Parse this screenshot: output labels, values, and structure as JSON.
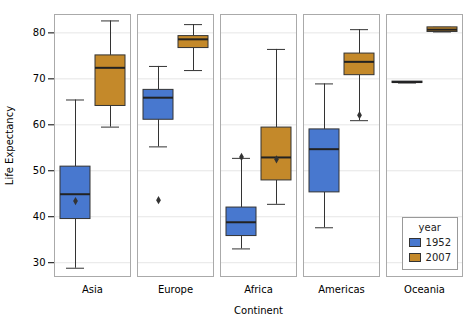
{
  "chart_data": {
    "type": "box",
    "xlabel": "Continent",
    "ylabel": "Life Expectancy",
    "categories": [
      "Asia",
      "Europe",
      "Africa",
      "Americas",
      "Oceania"
    ],
    "series": [
      {
        "name": "1952",
        "color": "#4878CF",
        "values": [
          {
            "whislo": 28.8,
            "q1": 39.5,
            "med": 44.9,
            "q3": 50.9,
            "whishi": 65.4,
            "fliers": [
              43.4
            ]
          },
          {
            "whislo": 55.2,
            "q1": 61.1,
            "med": 65.9,
            "q3": 67.6,
            "whishi": 72.7,
            "fliers": [
              43.6
            ]
          },
          {
            "whislo": 33.0,
            "q1": 35.8,
            "med": 38.8,
            "q3": 42.0,
            "whishi": 52.7,
            "fliers": [
              53.0
            ]
          },
          {
            "whislo": 37.6,
            "q1": 45.3,
            "med": 54.7,
            "q3": 59.0,
            "whishi": 68.9,
            "fliers": []
          },
          {
            "whislo": 69.1,
            "q1": 69.1,
            "med": 69.3,
            "q3": 69.4,
            "whishi": 69.4,
            "fliers": []
          }
        ]
      },
      {
        "name": "2007",
        "color": "#C4892A",
        "values": [
          {
            "whislo": 59.5,
            "q1": 64.1,
            "med": 72.4,
            "q3": 75.1,
            "whishi": 82.6,
            "fliers": []
          },
          {
            "whislo": 71.8,
            "q1": 76.7,
            "med": 78.6,
            "q3": 79.3,
            "whishi": 81.8,
            "fliers": []
          },
          {
            "whislo": 42.7,
            "q1": 47.9,
            "med": 52.9,
            "q3": 59.4,
            "whishi": 76.4,
            "fliers": [
              52.5
            ]
          },
          {
            "whislo": 60.9,
            "q1": 70.8,
            "med": 73.7,
            "q3": 75.5,
            "whishi": 80.7,
            "fliers": [
              62.1
            ]
          },
          {
            "whislo": 80.2,
            "q1": 80.2,
            "med": 80.7,
            "q3": 81.2,
            "whishi": 81.2,
            "fliers": []
          }
        ]
      }
    ],
    "legend_title": "year",
    "legend": "lower right",
    "ylim": [
      27,
      84
    ],
    "yticks": [
      30,
      40,
      50,
      60,
      70,
      80
    ],
    "grid": true
  }
}
